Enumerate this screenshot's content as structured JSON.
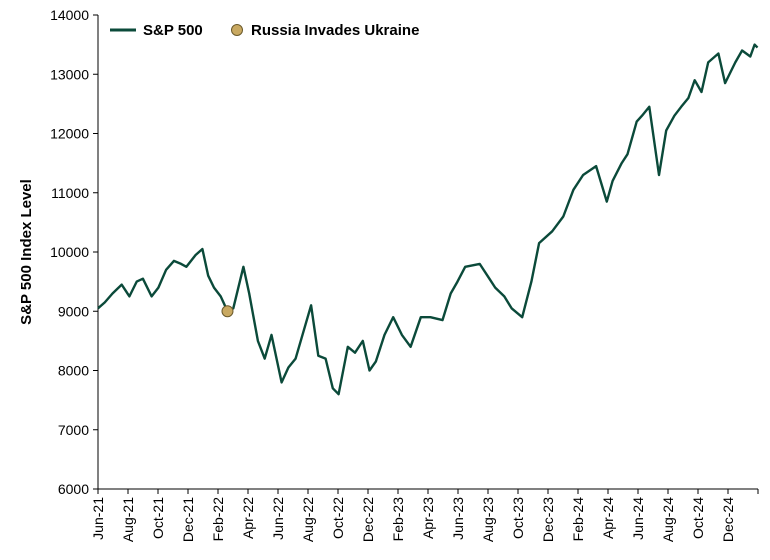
{
  "chart_data": {
    "type": "line",
    "title": "",
    "xlabel": "",
    "ylabel": "S&P 500 Index Level",
    "ylim": [
      6000,
      14000
    ],
    "yticks": [
      6000,
      7000,
      8000,
      9000,
      10000,
      11000,
      12000,
      13000,
      14000
    ],
    "xticks": [
      "Jun-21",
      "Aug-21",
      "Oct-21",
      "Dec-21",
      "Feb-22",
      "Apr-22",
      "Jun-22",
      "Aug-22",
      "Oct-22",
      "Dec-22",
      "Feb-23",
      "Apr-23",
      "Jun-23",
      "Aug-23",
      "Oct-23",
      "Dec-23",
      "Feb-24",
      "Apr-24",
      "Jun-24",
      "Aug-24",
      "Oct-24",
      "Dec-24"
    ],
    "grid": false,
    "legend_position": "top-left",
    "line_color": "#0b4a3a",
    "marker_color": "#c9a961",
    "series": [
      {
        "name": "S&P 500",
        "x": [
          "2021-06-01",
          "2021-06-15",
          "2021-07-01",
          "2021-07-20",
          "2021-08-05",
          "2021-08-20",
          "2021-09-02",
          "2021-09-20",
          "2021-10-04",
          "2021-10-20",
          "2021-11-05",
          "2021-11-20",
          "2021-12-01",
          "2021-12-20",
          "2022-01-03",
          "2022-01-15",
          "2022-01-27",
          "2022-02-10",
          "2022-02-24",
          "2022-03-08",
          "2022-03-29",
          "2022-04-10",
          "2022-04-28",
          "2022-05-12",
          "2022-05-26",
          "2022-06-16",
          "2022-06-30",
          "2022-07-15",
          "2022-08-16",
          "2022-08-31",
          "2022-09-15",
          "2022-09-30",
          "2022-10-12",
          "2022-10-31",
          "2022-11-15",
          "2022-12-01",
          "2022-12-15",
          "2022-12-28",
          "2023-01-15",
          "2023-02-02",
          "2023-02-20",
          "2023-03-10",
          "2023-03-31",
          "2023-04-20",
          "2023-05-15",
          "2023-06-01",
          "2023-06-15",
          "2023-07-01",
          "2023-07-31",
          "2023-08-20",
          "2023-09-01",
          "2023-09-20",
          "2023-10-05",
          "2023-10-27",
          "2023-11-15",
          "2023-12-01",
          "2023-12-28",
          "2024-01-20",
          "2024-02-10",
          "2024-03-01",
          "2024-03-28",
          "2024-04-19",
          "2024-05-01",
          "2024-05-20",
          "2024-06-01",
          "2024-06-20",
          "2024-07-01",
          "2024-07-16",
          "2024-08-05",
          "2024-08-20",
          "2024-09-06",
          "2024-09-20",
          "2024-10-05",
          "2024-10-18",
          "2024-11-01",
          "2024-11-15",
          "2024-12-06",
          "2024-12-20",
          "2025-01-10",
          "2025-01-24",
          "2025-02-10",
          "2025-02-19",
          "2025-02-25"
        ],
        "values": [
          9050,
          9150,
          9300,
          9450,
          9250,
          9500,
          9550,
          9250,
          9400,
          9700,
          9850,
          9800,
          9750,
          9950,
          10050,
          9600,
          9400,
          9250,
          9000,
          9050,
          9750,
          9300,
          8500,
          8200,
          8600,
          7800,
          8050,
          8200,
          9100,
          8250,
          8200,
          7700,
          7600,
          8400,
          8300,
          8500,
          8000,
          8150,
          8600,
          8900,
          8600,
          8400,
          8900,
          8900,
          8850,
          9300,
          9500,
          9750,
          9800,
          9550,
          9400,
          9250,
          9050,
          8900,
          9500,
          10150,
          10350,
          10600,
          11050,
          11300,
          11450,
          10850,
          11200,
          11500,
          11650,
          12200,
          12300,
          12450,
          11300,
          12050,
          12300,
          12450,
          12600,
          12900,
          12700,
          13200,
          13350,
          12850,
          13200,
          13400,
          13300,
          13500,
          13450
        ]
      },
      {
        "name": "Russia Invades Ukraine",
        "type": "scatter",
        "x": [
          "2022-02-24"
        ],
        "values": [
          9000
        ]
      }
    ]
  }
}
